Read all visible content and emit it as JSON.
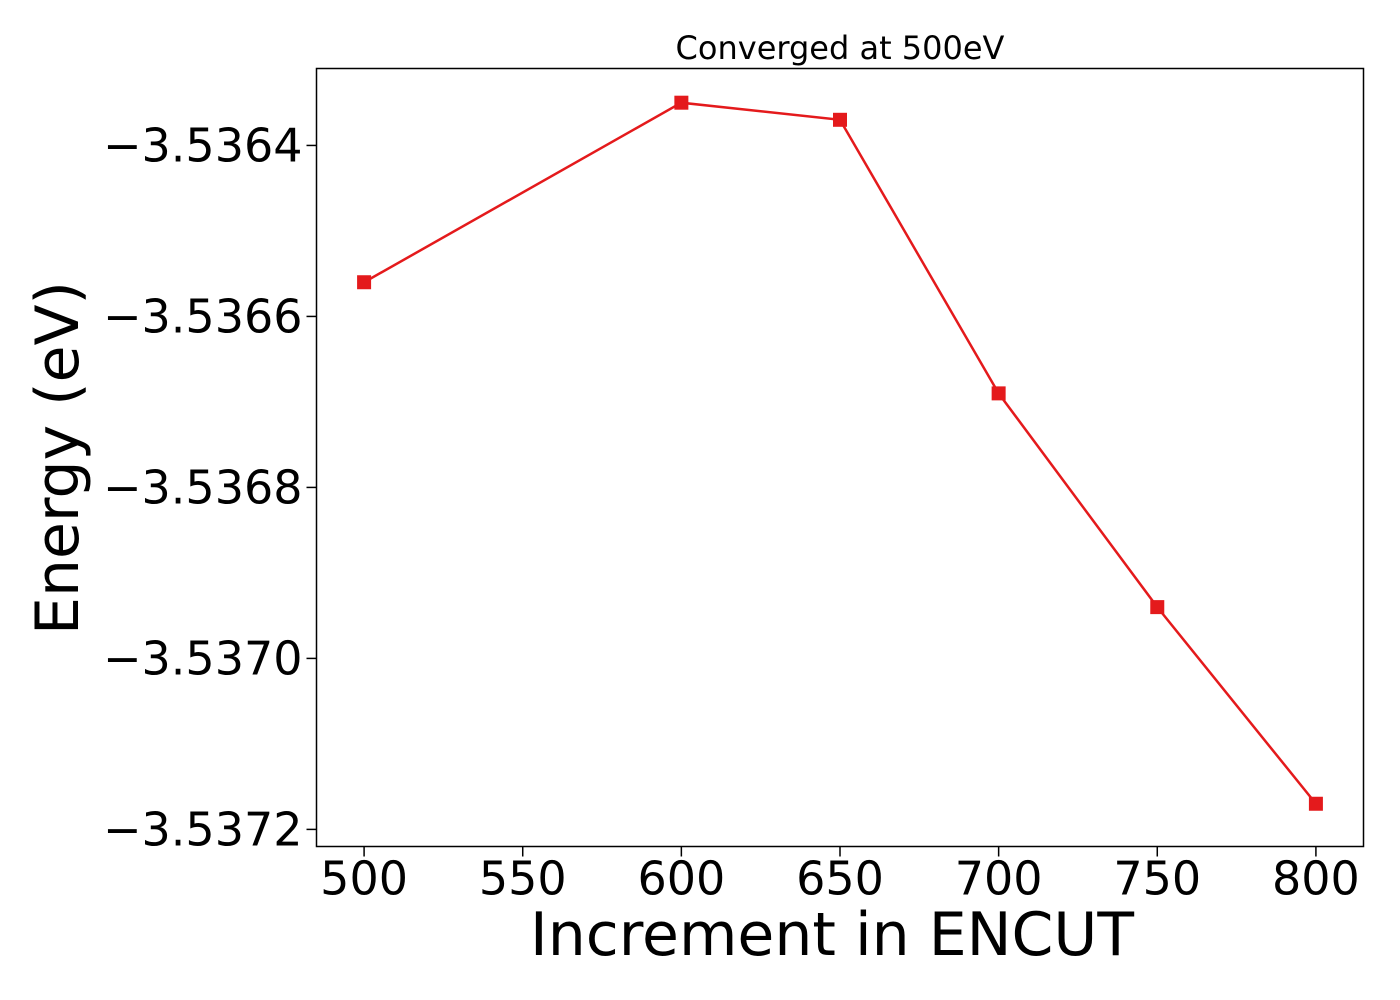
{
  "chart_data": {
    "type": "line",
    "title": "Converged at 500eV",
    "xlabel": "Increment in ENCUT",
    "ylabel": "Energy (eV)",
    "x": [
      500,
      600,
      650,
      700,
      750,
      800
    ],
    "series": [
      {
        "values": [
          -3.53656,
          -3.53635,
          -3.53637,
          -3.53669,
          -3.53694,
          -3.53717
        ],
        "color": "#e41a1c",
        "marker": "square"
      }
    ],
    "xticks": [
      500,
      550,
      600,
      650,
      700,
      750,
      800
    ],
    "xtick_labels": [
      "500",
      "550",
      "600",
      "650",
      "700",
      "750",
      "800"
    ],
    "yticks": [
      -3.5364,
      -3.5366,
      -3.5368,
      -3.537,
      -3.5372
    ],
    "ytick_labels": [
      "−3.5364",
      "−3.5366",
      "−3.5368",
      "−3.5370",
      "−3.5372"
    ],
    "xlim": [
      485,
      815
    ],
    "ylim": [
      -3.53722,
      -3.53631
    ],
    "grid": false,
    "legend": "none"
  }
}
